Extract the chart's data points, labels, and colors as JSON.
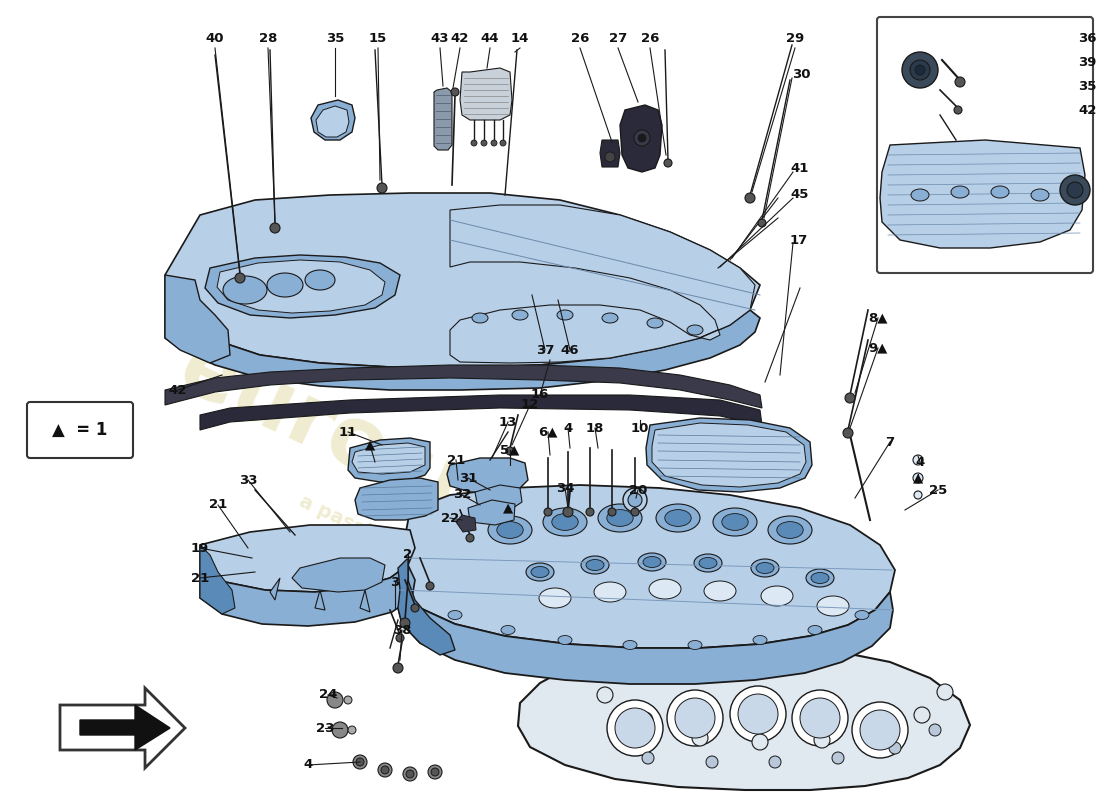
{
  "bg_color": "#ffffff",
  "lc": "#1a1a1a",
  "pc_light": "#b8cfe8",
  "pc_mid": "#8aafd4",
  "pc_dark": "#5a8ab8",
  "pc_very_light": "#dce8f4",
  "gasket_color": "#e0e8f0",
  "wm_color": "#c8bb5a",
  "tri": "▲",
  "figsize": [
    11.0,
    8.0
  ],
  "dpi": 100
}
